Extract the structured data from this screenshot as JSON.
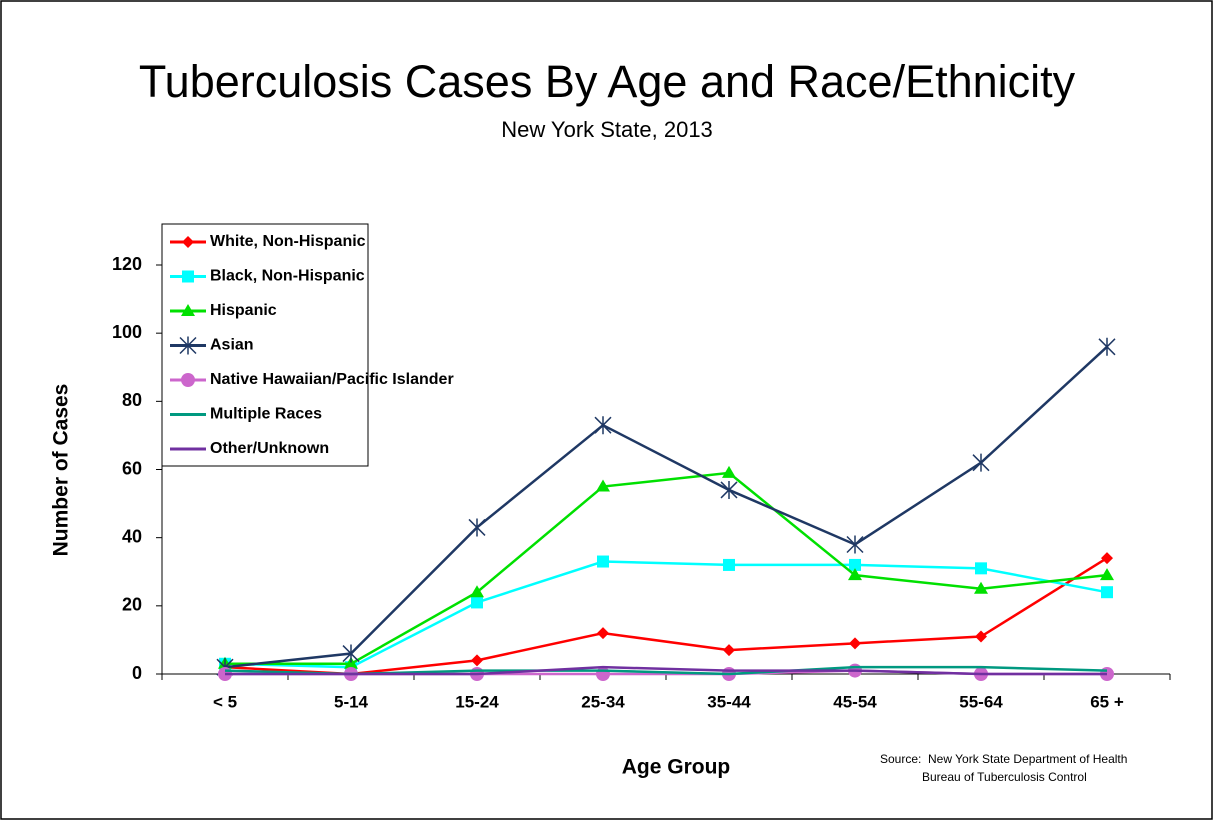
{
  "chart_data": {
    "type": "line",
    "title": "Tuberculosis Cases By Age and Race/Ethnicity",
    "subtitle": "New York State, 2013",
    "x_label": "Age Group",
    "y_label": "Number of Cases",
    "source_label": "Source:",
    "source_lines": [
      "New York State Department of Health",
      "Bureau of Tuberculosis Control"
    ],
    "categories": [
      "< 5",
      "5-14",
      "15-24",
      "25-34",
      "35-44",
      "45-54",
      "55-64",
      "65 +"
    ],
    "ylim": [
      0,
      120
    ],
    "yticks": [
      0,
      20,
      40,
      60,
      80,
      100,
      120
    ],
    "legend": "upper left",
    "grid": false,
    "series": [
      {
        "name": "White, Non-Hispanic",
        "color": "#ff0000",
        "marker": "diamond",
        "values": [
          2,
          0,
          4,
          12,
          7,
          9,
          11,
          34
        ]
      },
      {
        "name": "Black, Non-Hispanic",
        "color": "#00ffff",
        "marker": "square",
        "values": [
          3,
          2,
          21,
          33,
          32,
          32,
          31,
          24
        ]
      },
      {
        "name": "Hispanic",
        "color": "#00e000",
        "marker": "triangle",
        "values": [
          3,
          3,
          24,
          55,
          59,
          29,
          25,
          29
        ]
      },
      {
        "name": "Asian",
        "color": "#1f3864",
        "marker": "star",
        "values": [
          2,
          6,
          43,
          73,
          54,
          38,
          62,
          96
        ]
      },
      {
        "name": "Native Hawaiian/Pacific Islander",
        "color": "#cc66cc",
        "marker": "circle",
        "values": [
          0,
          0,
          0,
          0,
          0,
          1,
          0,
          0
        ]
      },
      {
        "name": "Multiple Races",
        "color": "#009980",
        "marker": "none",
        "values": [
          1,
          0,
          1,
          1,
          0,
          2,
          2,
          1
        ]
      },
      {
        "name": "Other/Unknown",
        "color": "#7030a0",
        "marker": "none",
        "values": [
          0,
          0,
          0,
          2,
          1,
          1,
          0,
          0
        ]
      }
    ]
  }
}
